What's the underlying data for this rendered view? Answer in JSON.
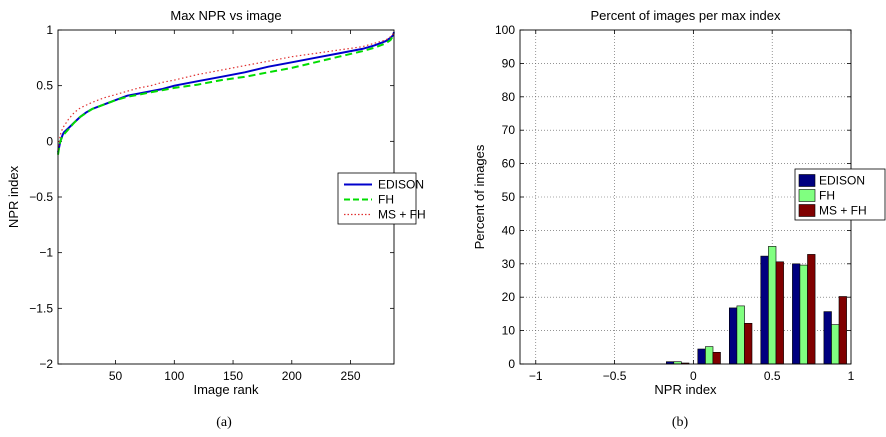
{
  "figure": {
    "caption_a": "(a)",
    "caption_b": "(b)"
  },
  "chart_data": [
    {
      "type": "line",
      "title": "Max NPR vs image",
      "xlabel": "Image rank",
      "ylabel": "NPR index",
      "xlim": [
        1,
        287
      ],
      "ylim": [
        -2,
        1
      ],
      "xticks": [
        50,
        100,
        150,
        200,
        250
      ],
      "xtick_labels": [
        "50",
        "100",
        "150",
        "200",
        "250"
      ],
      "yticks": [
        -2,
        -1.5,
        -1,
        -0.5,
        0,
        0.5,
        1
      ],
      "ytick_labels": [
        "−2",
        "−1.5",
        "−1",
        "−0.5",
        "0",
        "0.5",
        "1"
      ],
      "grid": false,
      "legend": "right",
      "series": [
        {
          "name": "EDISON",
          "color": "#0000cc",
          "style": "solid",
          "x": [
            1,
            2,
            3,
            4,
            5,
            6,
            8,
            10,
            15,
            20,
            25,
            30,
            40,
            50,
            60,
            70,
            80,
            90,
            100,
            120,
            140,
            160,
            180,
            200,
            220,
            240,
            260,
            270,
            280,
            284,
            286,
            287
          ],
          "y": [
            -0.1,
            -0.05,
            0.0,
            0.03,
            0.06,
            0.08,
            0.1,
            0.12,
            0.17,
            0.22,
            0.26,
            0.29,
            0.33,
            0.37,
            0.41,
            0.43,
            0.45,
            0.47,
            0.5,
            0.54,
            0.58,
            0.62,
            0.67,
            0.71,
            0.75,
            0.79,
            0.83,
            0.86,
            0.9,
            0.93,
            0.95,
            0.98
          ]
        },
        {
          "name": "FH",
          "color": "#00dd00",
          "style": "dashed",
          "x": [
            1,
            2,
            3,
            5,
            10,
            15,
            20,
            30,
            40,
            50,
            60,
            70,
            80,
            90,
            100,
            120,
            140,
            160,
            180,
            200,
            220,
            240,
            260,
            270,
            280,
            284,
            287
          ],
          "y": [
            -0.12,
            -0.05,
            0.0,
            0.05,
            0.11,
            0.17,
            0.22,
            0.29,
            0.33,
            0.37,
            0.4,
            0.42,
            0.44,
            0.46,
            0.48,
            0.51,
            0.55,
            0.58,
            0.62,
            0.66,
            0.71,
            0.76,
            0.81,
            0.84,
            0.88,
            0.91,
            0.96
          ]
        },
        {
          "name": "MS + FH",
          "color": "#e03030",
          "style": "dotted",
          "x": [
            1,
            2,
            3,
            5,
            10,
            15,
            20,
            30,
            40,
            50,
            60,
            70,
            80,
            90,
            100,
            120,
            140,
            160,
            180,
            200,
            220,
            240,
            260,
            270,
            280,
            284,
            287
          ],
          "y": [
            -0.08,
            0.0,
            0.06,
            0.12,
            0.2,
            0.26,
            0.3,
            0.35,
            0.39,
            0.42,
            0.45,
            0.48,
            0.5,
            0.53,
            0.55,
            0.6,
            0.64,
            0.68,
            0.72,
            0.76,
            0.79,
            0.82,
            0.85,
            0.88,
            0.91,
            0.94,
            0.97
          ]
        }
      ]
    },
    {
      "type": "bar",
      "title": "Percent of images per max index",
      "xlabel": "NPR index",
      "ylabel": "Percent of images",
      "xlim": [
        -1.1,
        1
      ],
      "ylim": [
        0,
        100
      ],
      "xticks": [
        -1,
        -0.5,
        0,
        0.5,
        1
      ],
      "xtick_labels": [
        "−1",
        "−0.5",
        "0",
        "0.5",
        "1"
      ],
      "yticks": [
        0,
        10,
        20,
        30,
        40,
        50,
        60,
        70,
        80,
        90,
        100
      ],
      "ytick_labels": [
        "0",
        "10",
        "20",
        "30",
        "40",
        "50",
        "60",
        "70",
        "80",
        "90",
        "100"
      ],
      "grid": true,
      "legend": "right",
      "categories": [
        -0.9,
        -0.7,
        -0.5,
        -0.3,
        -0.1,
        0.1,
        0.3,
        0.5,
        0.7,
        0.9
      ],
      "series": [
        {
          "name": "EDISON",
          "color": "#00007f",
          "values": [
            0,
            0,
            0,
            0,
            0.7,
            4.5,
            16.8,
            32.3,
            30,
            15.7
          ]
        },
        {
          "name": "FH",
          "color": "#80ff80",
          "values": [
            0,
            0,
            0,
            0,
            0.7,
            5.2,
            17.4,
            35.2,
            29.6,
            11.8
          ]
        },
        {
          "name": "MS + FH",
          "color": "#800000",
          "values": [
            0,
            0,
            0,
            0,
            0.3,
            3.5,
            12.2,
            30.6,
            32.8,
            20.2
          ]
        }
      ]
    }
  ]
}
